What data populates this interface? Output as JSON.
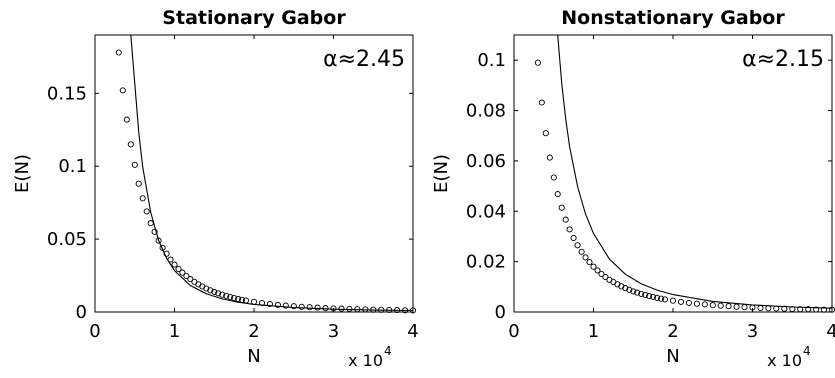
{
  "chart_data": [
    {
      "type": "scatter",
      "title": "Stationary Gabor",
      "annotation": "α≈2.45",
      "xlabel": "N",
      "ylabel": "E(N)",
      "x_multiplier_base": "x 10",
      "x_multiplier_exp": "4",
      "xlim": [
        0,
        4
      ],
      "ylim": [
        0,
        0.19
      ],
      "xticks": [
        "0",
        "1",
        "2",
        "3",
        "4"
      ],
      "yticks": [
        {
          "value": 0,
          "label": "0"
        },
        {
          "value": 0.05,
          "label": "0.05"
        },
        {
          "value": 0.1,
          "label": "0.1"
        },
        {
          "value": 0.15,
          "label": "0.15"
        }
      ],
      "grid": false,
      "marker": "open-circle",
      "series": [
        {
          "style": "markers",
          "x": [
            0.3,
            0.35,
            0.4,
            0.45,
            0.5,
            0.55,
            0.6,
            0.65,
            0.7,
            0.75,
            0.8,
            0.85,
            0.9,
            0.95,
            1.0,
            1.05,
            1.1,
            1.15,
            1.2,
            1.25,
            1.3,
            1.35,
            1.4,
            1.45,
            1.5,
            1.55,
            1.6,
            1.65,
            1.7,
            1.75,
            1.8,
            1.85,
            1.9,
            2.0,
            2.1,
            2.2,
            2.3,
            2.4,
            2.5,
            2.6,
            2.7,
            2.8,
            2.9,
            3.0,
            3.1,
            3.2,
            3.3,
            3.4,
            3.5,
            3.6,
            3.7,
            3.8,
            3.9,
            4.0
          ],
          "y": [
            0.178,
            0.152,
            0.132,
            0.115,
            0.101,
            0.088,
            0.078,
            0.069,
            0.061,
            0.055,
            0.049,
            0.044,
            0.04,
            0.036,
            0.0325,
            0.0295,
            0.027,
            0.0247,
            0.0226,
            0.0207,
            0.019,
            0.0175,
            0.0161,
            0.0149,
            0.0138,
            0.0128,
            0.0119,
            0.0111,
            0.0103,
            0.0096,
            0.009,
            0.0084,
            0.0079,
            0.007,
            0.0062,
            0.0055,
            0.0049,
            0.0044,
            0.004,
            0.0036,
            0.0033,
            0.003,
            0.0027,
            0.0025,
            0.0023,
            0.0021,
            0.0019,
            0.0018,
            0.0016,
            0.0015,
            0.0014,
            0.0013,
            0.0012,
            0.0011
          ]
        },
        {
          "style": "line",
          "x": [
            0.45,
            0.5,
            0.55,
            0.6,
            0.7,
            0.8,
            0.9,
            1.0,
            1.2,
            1.4,
            1.6,
            1.8,
            2.0,
            2.5,
            3.0,
            3.5,
            4.0
          ],
          "y": [
            0.19,
            0.1565,
            0.1236,
            0.0995,
            0.0683,
            0.0491,
            0.0368,
            0.0284,
            0.0182,
            0.0125,
            0.009,
            0.0067,
            0.0052,
            0.003,
            0.0019,
            0.0013,
            0.001
          ]
        }
      ]
    },
    {
      "type": "scatter",
      "title": "Nonstationary Gabor",
      "annotation": "α≈2.15",
      "xlabel": "N",
      "ylabel": "E(N)",
      "x_multiplier_base": "x 10",
      "x_multiplier_exp": "4",
      "xlim": [
        0,
        4
      ],
      "ylim": [
        0,
        0.11
      ],
      "xticks": [
        "0",
        "1",
        "2",
        "3",
        "4"
      ],
      "yticks": [
        {
          "value": 0,
          "label": "0"
        },
        {
          "value": 0.02,
          "label": "0.02"
        },
        {
          "value": 0.04,
          "label": "0.04"
        },
        {
          "value": 0.06,
          "label": "0.06"
        },
        {
          "value": 0.08,
          "label": "0.08"
        },
        {
          "value": 0.1,
          "label": "0.1"
        }
      ],
      "grid": false,
      "marker": "open-circle",
      "series": [
        {
          "style": "markers",
          "x": [
            0.3,
            0.35,
            0.4,
            0.45,
            0.5,
            0.55,
            0.6,
            0.65,
            0.7,
            0.75,
            0.8,
            0.85,
            0.9,
            0.95,
            1.0,
            1.05,
            1.1,
            1.15,
            1.2,
            1.25,
            1.3,
            1.35,
            1.4,
            1.45,
            1.5,
            1.55,
            1.6,
            1.65,
            1.7,
            1.75,
            1.8,
            1.85,
            1.9,
            2.0,
            2.1,
            2.2,
            2.3,
            2.4,
            2.5,
            2.6,
            2.7,
            2.8,
            2.9,
            3.0,
            3.1,
            3.2,
            3.3,
            3.4,
            3.5,
            3.6,
            3.7,
            3.8,
            3.9,
            4.0
          ],
          "y": [
            0.099,
            0.0832,
            0.071,
            0.0613,
            0.0534,
            0.0468,
            0.0414,
            0.0367,
            0.0328,
            0.0294,
            0.0265,
            0.0239,
            0.0217,
            0.0198,
            0.018,
            0.0165,
            0.0151,
            0.0139,
            0.0128,
            0.0119,
            0.011,
            0.0102,
            0.0095,
            0.0088,
            0.0082,
            0.0077,
            0.0072,
            0.0068,
            0.0063,
            0.006,
            0.0056,
            0.0053,
            0.005,
            0.0045,
            0.004,
            0.0036,
            0.0033,
            0.003,
            0.0027,
            0.0025,
            0.0023,
            0.0021,
            0.0019,
            0.0018,
            0.0016,
            0.0015,
            0.0014,
            0.0013,
            0.0012,
            0.0011,
            0.0011,
            0.001,
            0.0009,
            0.0009
          ]
        },
        {
          "style": "line",
          "x": [
            0.55,
            0.6,
            0.65,
            0.7,
            0.8,
            0.9,
            1.0,
            1.2,
            1.4,
            1.6,
            1.8,
            2.0,
            2.5,
            3.0,
            3.5,
            4.0
          ],
          "y": [
            0.11,
            0.0909,
            0.0767,
            0.0657,
            0.0498,
            0.0389,
            0.0312,
            0.021,
            0.015,
            0.0112,
            0.0087,
            0.0069,
            0.0042,
            0.0028,
            0.002,
            0.0015
          ]
        }
      ]
    }
  ]
}
